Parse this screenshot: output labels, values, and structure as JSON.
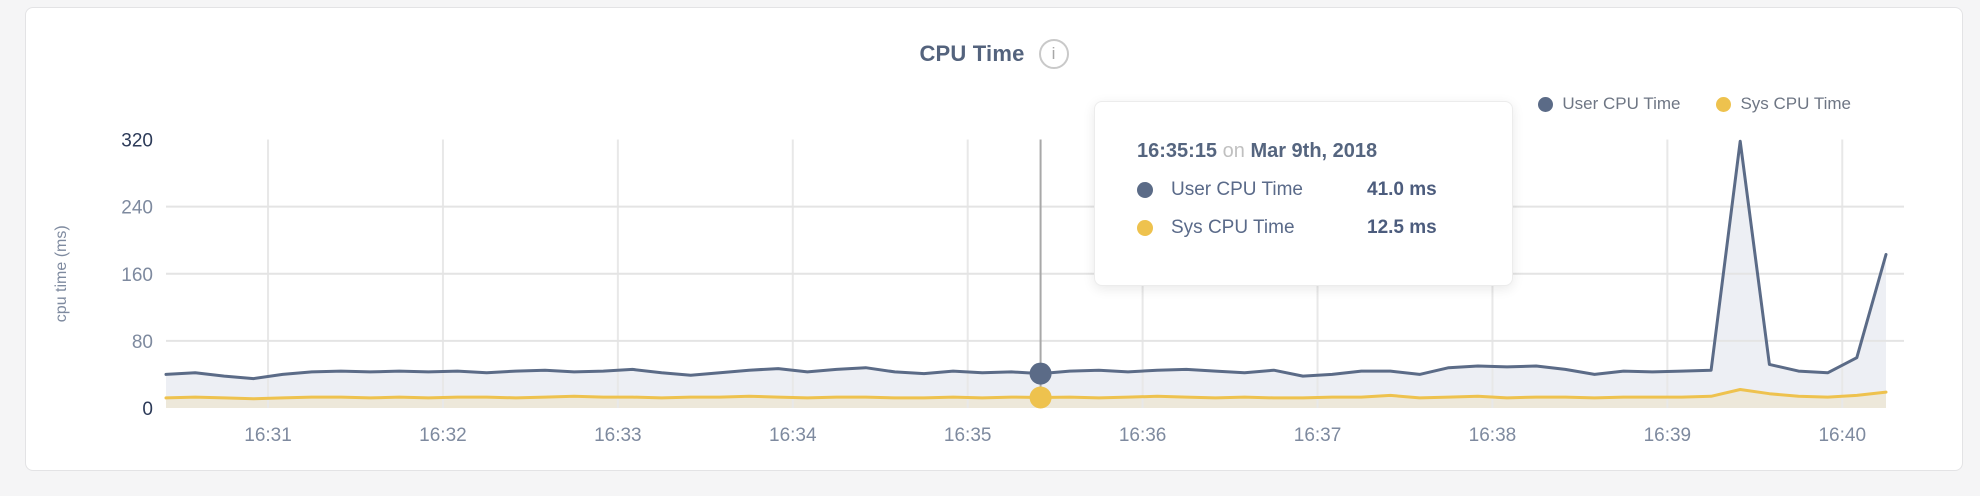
{
  "header": {
    "title": "CPU Time",
    "info_icon_glyph": "i"
  },
  "legend": {
    "items": [
      {
        "label": "User CPU Time",
        "color": "#5b6b87"
      },
      {
        "label": "Sys CPU Time",
        "color": "#eec24e"
      }
    ]
  },
  "tooltip": {
    "time": "16:35:15",
    "connector": "on",
    "date": "Mar 9th, 2018",
    "rows": [
      {
        "label": "User CPU Time",
        "value": "41.0 ms",
        "color": "#5b6b87"
      },
      {
        "label": "Sys CPU Time",
        "value": "12.5 ms",
        "color": "#eec24e"
      }
    ]
  },
  "chart_data": {
    "type": "area",
    "title": "CPU Time",
    "xlabel": "",
    "ylabel": "cpu time (ms)",
    "ylim": [
      0,
      320
    ],
    "y_ticks": [
      0,
      80,
      160,
      240,
      320
    ],
    "x_tick_labels": [
      "16:31",
      "16:32",
      "16:33",
      "16:34",
      "16:35",
      "16:36",
      "16:37",
      "16:38",
      "16:39",
      "16:40"
    ],
    "x_tick_seconds": [
      35,
      95,
      155,
      215,
      275,
      335,
      395,
      455,
      515,
      575
    ],
    "x_domain_seconds": [
      0,
      590
    ],
    "x_start_seconds": 0,
    "x_interval_seconds": 10,
    "grid": "horizontal-and-vertical",
    "legend_position": "top-right",
    "series": [
      {
        "name": "User CPU Time",
        "color": "#5b6b87",
        "fill": "#edeff4",
        "values": [
          40,
          42,
          38,
          35,
          40,
          43,
          44,
          43,
          44,
          43,
          44,
          42,
          44,
          45,
          43,
          44,
          46,
          42,
          39,
          42,
          45,
          47,
          43,
          46,
          48,
          43,
          41,
          44,
          42,
          43,
          41,
          44,
          45,
          43,
          45,
          46,
          44,
          42,
          45,
          38,
          40,
          44,
          44,
          40,
          48,
          50,
          49,
          50,
          46,
          40,
          44,
          43,
          44,
          45,
          318,
          52,
          44,
          42,
          60,
          183
        ]
      },
      {
        "name": "Sys CPU Time",
        "color": "#eec24e",
        "fill": "rgba(234,196,85,0.16)",
        "values": [
          12,
          13,
          12,
          11,
          12,
          13,
          13,
          12,
          13,
          12,
          13,
          13,
          12,
          13,
          14,
          13,
          13,
          12,
          13,
          13,
          14,
          13,
          12,
          13,
          13,
          12,
          12,
          13,
          12,
          13,
          12.5,
          13,
          12,
          13,
          14,
          13,
          12,
          13,
          12,
          12,
          13,
          13,
          15,
          12,
          13,
          14,
          12,
          13,
          13,
          12,
          13,
          13,
          13,
          14,
          22,
          17,
          14,
          13,
          15,
          19
        ]
      }
    ],
    "hover": {
      "index": 30,
      "time_label": "16:35:15",
      "line_color": "#a8a8a8",
      "user_value_ms": 41.0,
      "sys_value_ms": 12.5
    },
    "axis_colors": {
      "tick_strong": "#2c3a58",
      "tick_weak": "#7e8a9f",
      "grid_h": "#e4e4e4",
      "grid_v": "#e8e8e8"
    }
  }
}
